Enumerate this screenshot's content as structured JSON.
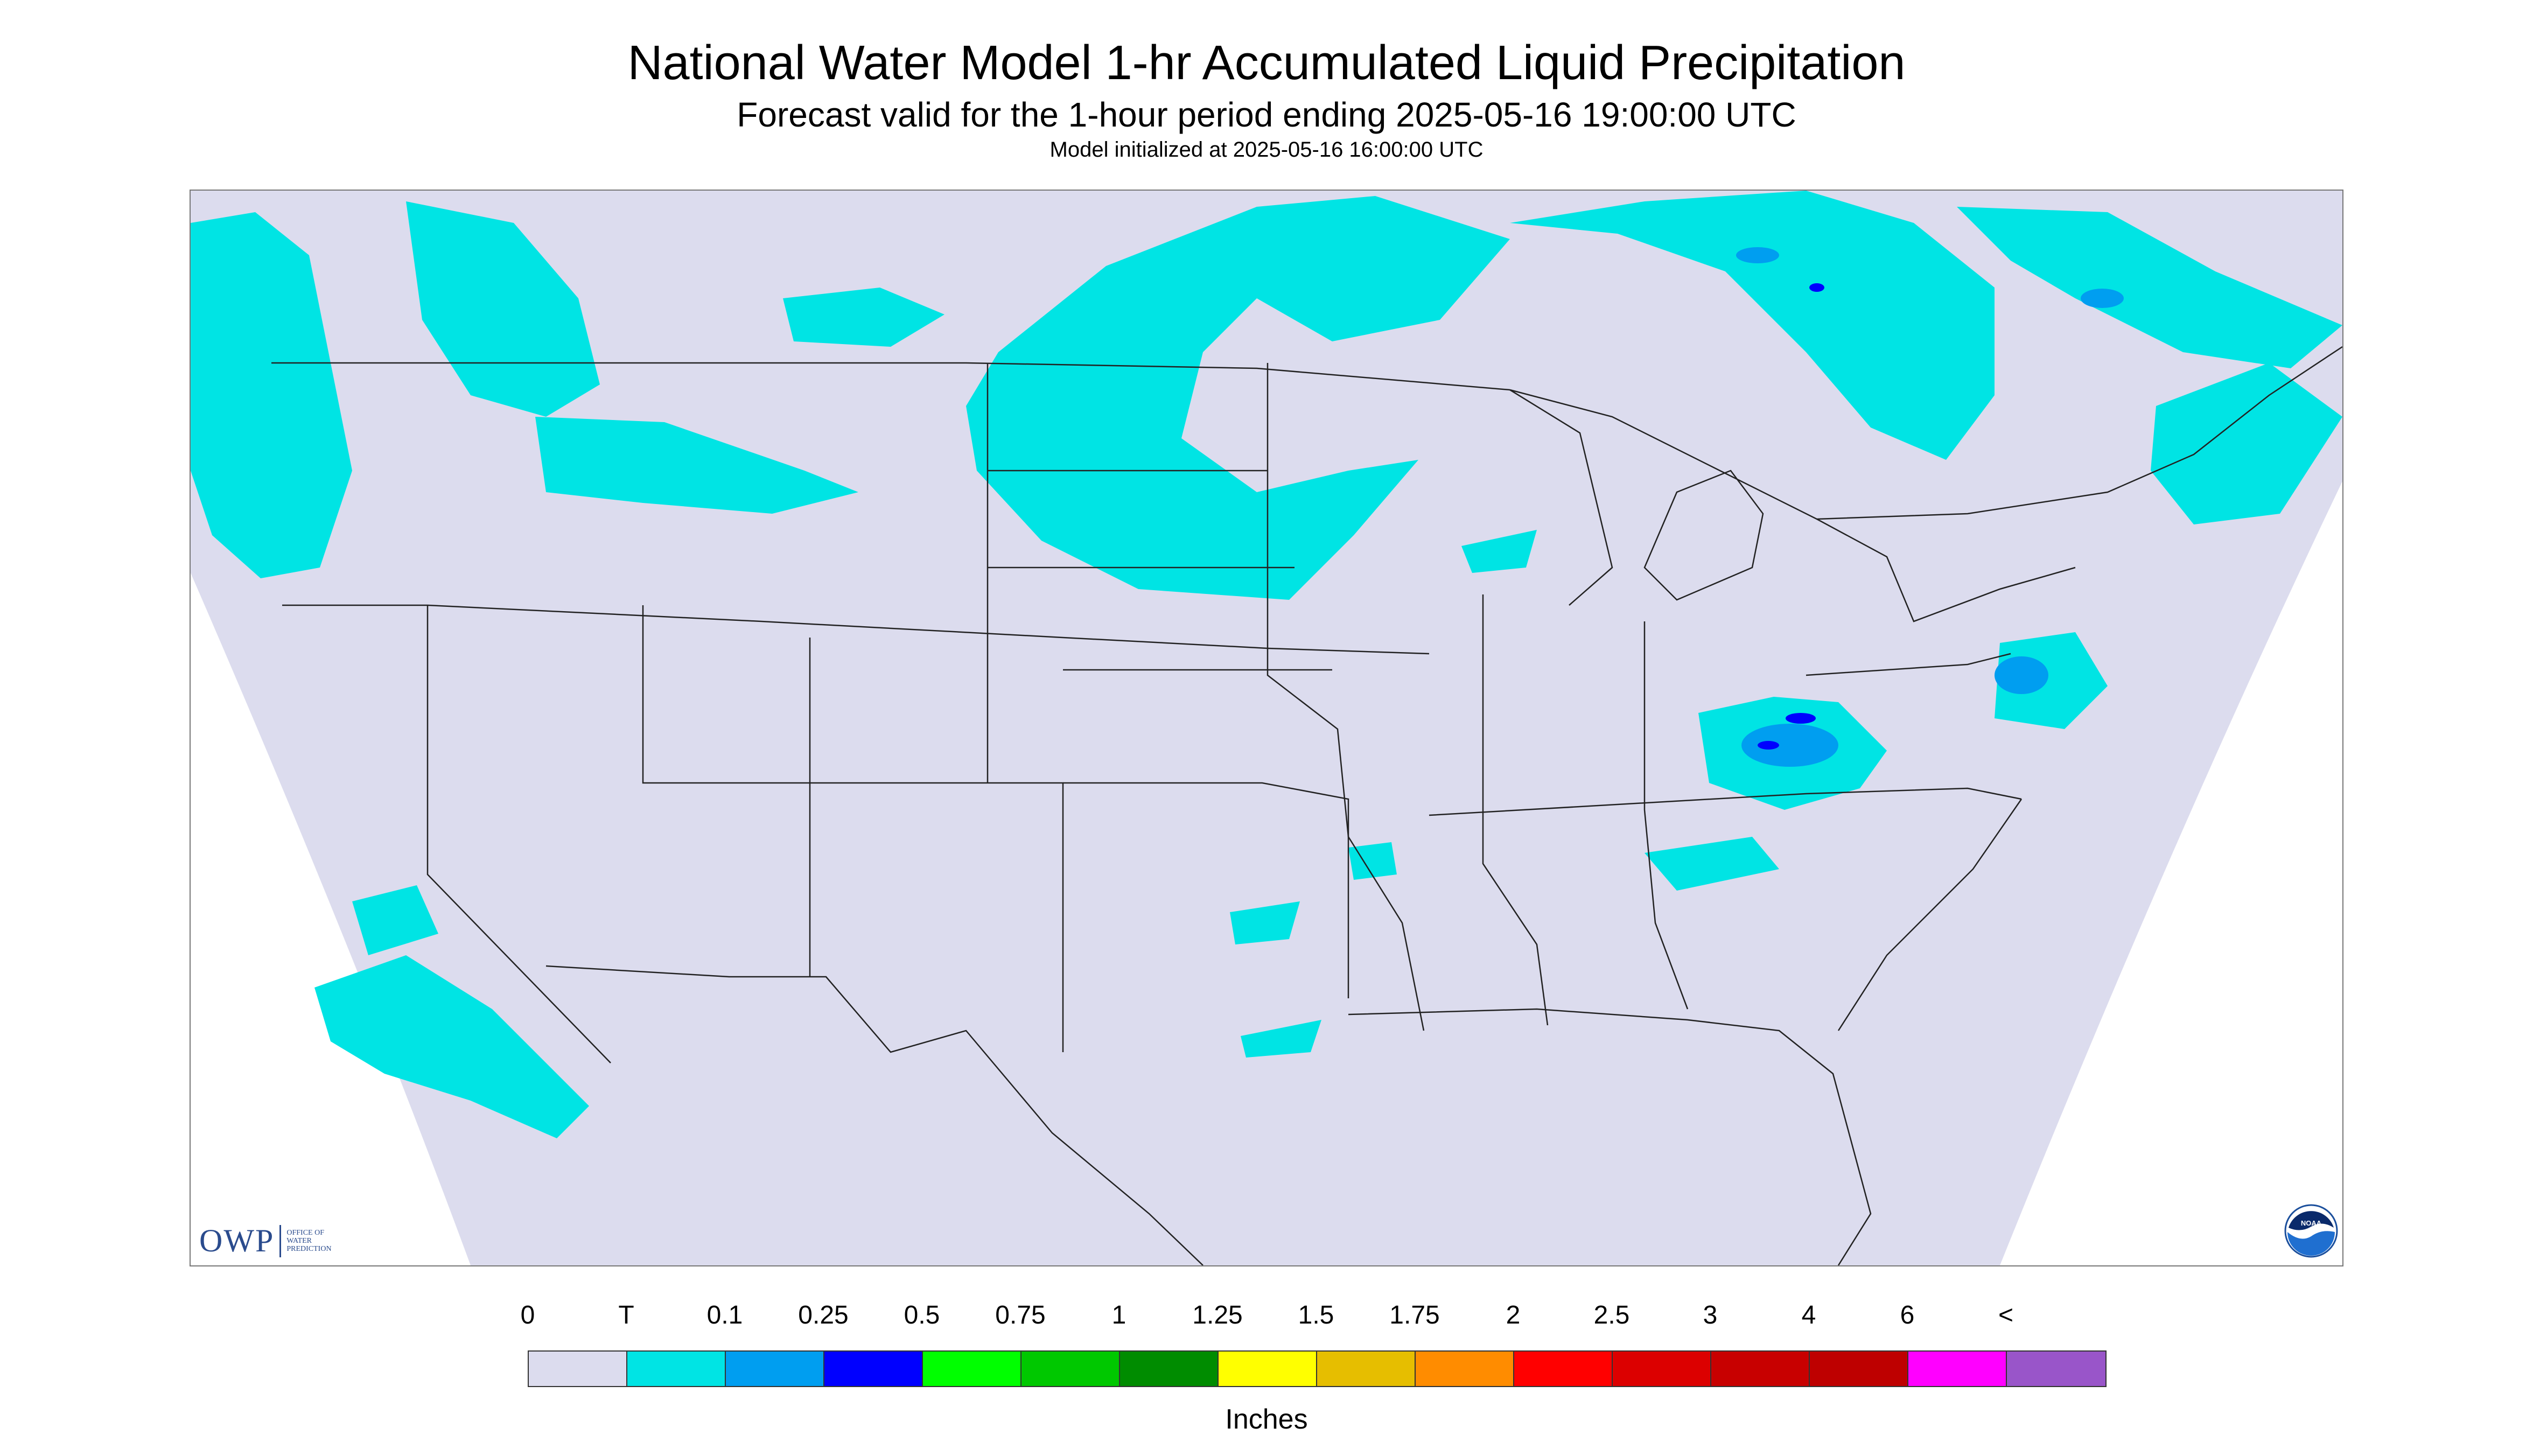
{
  "header": {
    "title": "National Water Model 1-hr Accumulated Liquid Precipitation",
    "subtitle": "Forecast valid for the 1-hour period ending 2025-05-16 19:00:00 UTC",
    "init": "Model initialized at 2025-05-16 16:00:00 UTC"
  },
  "logos": {
    "owp_mark": "OWP",
    "owp_text": "OFFICE OF\nWATER\nPREDICTION",
    "noaa_text": "NOAA"
  },
  "legend": {
    "labels": [
      "0",
      "T",
      "0.1",
      "0.25",
      "0.5",
      "0.75",
      "1",
      "1.25",
      "1.5",
      "1.75",
      "2",
      "2.5",
      "3",
      "4",
      "6",
      "<"
    ],
    "colors": [
      "#dcdcee",
      "#00e4e4",
      "#009ef0",
      "#0000ff",
      "#00ff00",
      "#00c800",
      "#008c00",
      "#ffff00",
      "#e6be00",
      "#ff8c00",
      "#ff0000",
      "#dc0000",
      "#c80000",
      "#be0000",
      "#ff00ff",
      "#9955c9"
    ],
    "units": "Inches"
  },
  "map": {
    "background_color": "#dcdcee",
    "outside_color": "#ffffff",
    "precip_trace_color": "#00e4e4",
    "precip_light_color": "#009ef0",
    "precip_heavy_color": "#0000ff",
    "boundary_color": "#222222"
  }
}
